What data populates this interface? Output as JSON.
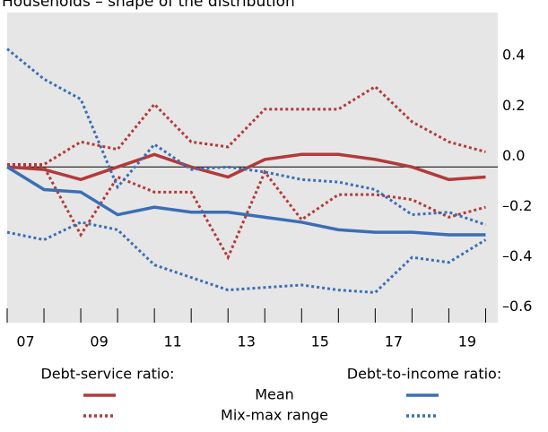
{
  "chart_data": {
    "type": "line",
    "title": "Households – shape of the distribution",
    "x": [
      2007,
      2008,
      2009,
      2010,
      2011,
      2012,
      2013,
      2014,
      2015,
      2016,
      2017,
      2018,
      2019,
      2020
    ],
    "xlim": [
      2007,
      2020.33
    ],
    "xticks": [
      {
        "value": 2007.5,
        "label": "07"
      },
      {
        "value": 2009.5,
        "label": "09"
      },
      {
        "value": 2011.5,
        "label": "11"
      },
      {
        "value": 2013.5,
        "label": "13"
      },
      {
        "value": 2015.5,
        "label": "15"
      },
      {
        "value": 2017.5,
        "label": "17"
      },
      {
        "value": 2019.5,
        "label": "19"
      }
    ],
    "ylim": [
      -0.62,
      0.615
    ],
    "yticks": [
      {
        "value": 0.4,
        "label": "0.4"
      },
      {
        "value": 0.2,
        "label": "0.2"
      },
      {
        "value": 0,
        "label": "0.0"
      },
      {
        "value": -0.2,
        "label": "–0.2"
      },
      {
        "value": -0.4,
        "label": "–0.4"
      },
      {
        "value": -0.6,
        "label": "–0.6"
      }
    ],
    "legend": {
      "groups": [
        "Debt-service ratio:",
        "Debt-to-income ratio:"
      ],
      "entries": [
        "Mean",
        "Mix-max range"
      ]
    },
    "series": [
      {
        "group": 0,
        "style": "solid",
        "color": "#b23a3a",
        "values": [
          0.0,
          -0.01,
          -0.05,
          0.0,
          0.05,
          0.0,
          -0.04,
          0.03,
          0.05,
          0.05,
          0.03,
          0.0,
          -0.05,
          -0.04
        ]
      },
      {
        "group": 0,
        "style": "dotted",
        "color": "#b23a3a",
        "values": [
          0.01,
          0.01,
          0.1,
          0.07,
          0.25,
          0.1,
          0.08,
          0.23,
          0.23,
          0.23,
          0.32,
          0.18,
          0.1,
          0.06
        ]
      },
      {
        "group": 0,
        "style": "dotted",
        "color": "#b23a3a",
        "values": [
          0.01,
          0.0,
          -0.27,
          -0.04,
          -0.1,
          -0.1,
          -0.36,
          -0.02,
          -0.21,
          -0.11,
          -0.11,
          -0.13,
          -0.2,
          -0.16
        ]
      },
      {
        "group": 1,
        "style": "solid",
        "color": "#3b6eb5",
        "values": [
          0.0,
          -0.09,
          -0.1,
          -0.19,
          -0.16,
          -0.18,
          -0.18,
          -0.2,
          -0.22,
          -0.25,
          -0.26,
          -0.26,
          -0.27,
          -0.27
        ]
      },
      {
        "group": 1,
        "style": "dotted",
        "color": "#3b6eb5",
        "values": [
          0.47,
          0.35,
          0.27,
          -0.08,
          0.09,
          -0.01,
          0.0,
          -0.02,
          -0.05,
          -0.06,
          -0.09,
          -0.19,
          -0.18,
          -0.23
        ]
      },
      {
        "group": 1,
        "style": "dotted",
        "color": "#3b6eb5",
        "values": [
          -0.26,
          -0.29,
          -0.22,
          -0.25,
          -0.39,
          -0.44,
          -0.49,
          -0.48,
          -0.47,
          -0.49,
          -0.5,
          -0.36,
          -0.38,
          -0.29
        ]
      }
    ]
  }
}
